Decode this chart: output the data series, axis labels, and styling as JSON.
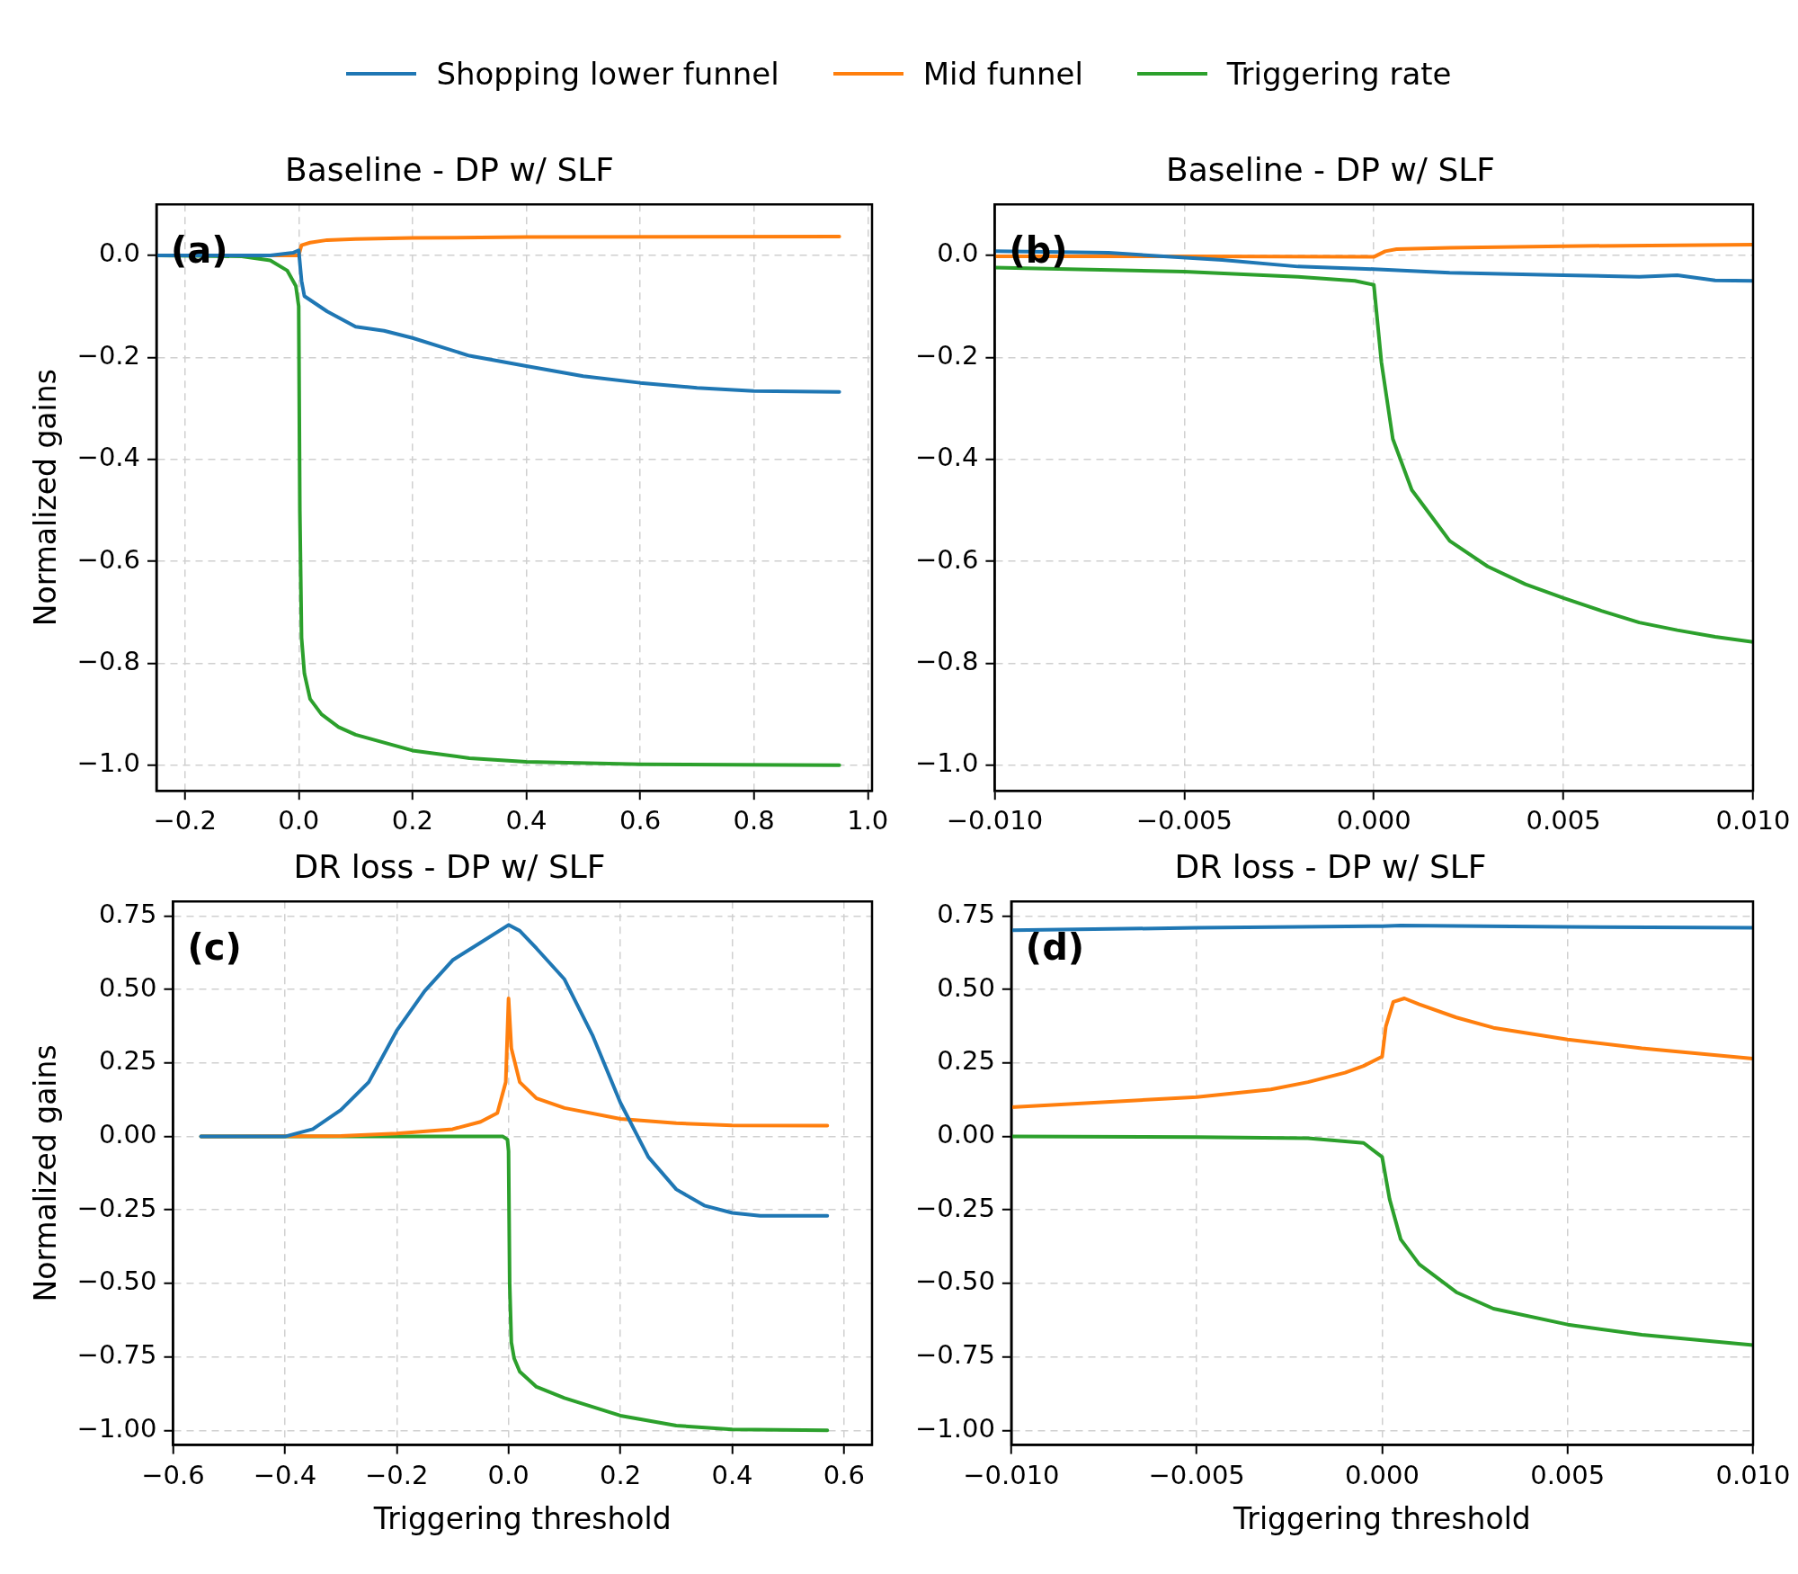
{
  "chart_data": [
    {
      "type": "line",
      "title": "Baseline - DP w/ SLF",
      "ylabel": "Normalized gains",
      "annotations": [
        "(a)"
      ],
      "legend": "top",
      "grid": true,
      "line_style": "solid",
      "marker": "none",
      "xlim": [
        -0.25,
        1.0075
      ],
      "ylim": [
        -1.05,
        0.1
      ],
      "xticks": [
        {
          "value": -0.2,
          "label": "−0.2"
        },
        {
          "value": 0,
          "label": "0.0"
        },
        {
          "value": 0.2,
          "label": "0.2"
        },
        {
          "value": 0.4,
          "label": "0.4"
        },
        {
          "value": 0.6,
          "label": "0.6"
        },
        {
          "value": 0.8,
          "label": "0.8"
        },
        {
          "value": 1,
          "label": "1.0"
        }
      ],
      "yticks": [
        {
          "value": -1,
          "label": "−1.0"
        },
        {
          "value": -0.8,
          "label": "−0.8"
        },
        {
          "value": -0.6,
          "label": "−0.6"
        },
        {
          "value": -0.4,
          "label": "−0.4"
        },
        {
          "value": -0.2,
          "label": "−0.2"
        },
        {
          "value": 0,
          "label": "0.0"
        }
      ],
      "series": [
        {
          "name": "Shopping lower funnel",
          "color": "#1f77b4",
          "x": [
            -0.25,
            -0.05,
            -0.01,
            0,
            0.005,
            0.01,
            0.05,
            0.1,
            0.15,
            0.2,
            0.3,
            0.4,
            0.5,
            0.6,
            0.7,
            0.8,
            0.95
          ],
          "values": [
            0,
            0,
            0.005,
            0.01,
            -0.05,
            -0.08,
            -0.11,
            -0.14,
            -0.148,
            -0.162,
            -0.197,
            -0.217,
            -0.237,
            -0.25,
            -0.26,
            -0.266,
            -0.268
          ]
        },
        {
          "name": "Mid funnel",
          "color": "#ff7f0e",
          "x": [
            -0.25,
            -0.05,
            -0.005,
            0,
            0.005,
            0.02,
            0.05,
            0.1,
            0.2,
            0.4,
            0.95
          ],
          "values": [
            0,
            0,
            0,
            0,
            0.02,
            0.025,
            0.03,
            0.032,
            0.034,
            0.036,
            0.037
          ]
        },
        {
          "name": "Triggering rate",
          "color": "#2ca02c",
          "x": [
            -0.25,
            -0.1,
            -0.05,
            -0.02,
            -0.005,
            0,
            0.002,
            0.005,
            0.01,
            0.02,
            0.04,
            0.07,
            0.1,
            0.2,
            0.3,
            0.4,
            0.6,
            0.95
          ],
          "values": [
            0,
            -0.002,
            -0.01,
            -0.03,
            -0.06,
            -0.1,
            -0.5,
            -0.75,
            -0.82,
            -0.87,
            -0.9,
            -0.925,
            -0.94,
            -0.971,
            -0.986,
            -0.993,
            -0.998,
            -1.0
          ]
        }
      ]
    },
    {
      "type": "line",
      "title": "Baseline - DP w/ SLF",
      "annotations": [
        "(b)"
      ],
      "legend": false,
      "grid": true,
      "line_style": "solid",
      "marker": "none",
      "xlim": [
        -0.01,
        0.01
      ],
      "ylim": [
        -1.05,
        0.1
      ],
      "xticks": [
        {
          "value": -0.01,
          "label": "−0.010"
        },
        {
          "value": -0.005,
          "label": "−0.005"
        },
        {
          "value": 0,
          "label": "0.000"
        },
        {
          "value": 0.005,
          "label": "0.005"
        },
        {
          "value": 0.01,
          "label": "0.010"
        }
      ],
      "yticks": [
        {
          "value": -1,
          "label": "−1.0"
        },
        {
          "value": -0.8,
          "label": "−0.8"
        },
        {
          "value": -0.6,
          "label": "−0.6"
        },
        {
          "value": -0.4,
          "label": "−0.4"
        },
        {
          "value": -0.2,
          "label": "−0.2"
        },
        {
          "value": 0,
          "label": "0.0"
        }
      ],
      "series": [
        {
          "color": "#1f77b4",
          "x": [
            -0.01,
            -0.007,
            -0.004,
            -0.002,
            0,
            0.002,
            0.005,
            0.007,
            0.008,
            0.009,
            0.01
          ],
          "values": [
            0.008,
            0.005,
            -0.009,
            -0.022,
            -0.027,
            -0.034,
            -0.039,
            -0.042,
            -0.039,
            -0.049,
            -0.05
          ]
        },
        {
          "color": "#ff7f0e",
          "x": [
            -0.01,
            -0.005,
            0,
            0.0003,
            0.0006,
            0.002,
            0.005,
            0.01
          ],
          "values": [
            -0.002,
            -0.002,
            -0.003,
            0.008,
            0.012,
            0.015,
            0.018,
            0.021
          ]
        },
        {
          "color": "#2ca02c",
          "x": [
            -0.01,
            -0.005,
            -0.002,
            -0.0005,
            0,
            0.0002,
            0.0005,
            0.001,
            0.0015,
            0.002,
            0.003,
            0.004,
            0.005,
            0.006,
            0.007,
            0.008,
            0.009,
            0.01
          ],
          "values": [
            -0.024,
            -0.032,
            -0.042,
            -0.05,
            -0.058,
            -0.21,
            -0.36,
            -0.46,
            -0.51,
            -0.56,
            -0.61,
            -0.645,
            -0.672,
            -0.697,
            -0.72,
            -0.735,
            -0.748,
            -0.758
          ]
        }
      ]
    },
    {
      "type": "line",
      "title": "DR loss - DP w/ SLF",
      "xlabel": "Triggering threshold",
      "ylabel": "Normalized gains",
      "annotations": [
        "(c)"
      ],
      "legend": false,
      "grid": true,
      "line_style": "solid",
      "marker": "none",
      "xlim": [
        -0.6,
        0.65
      ],
      "ylim": [
        -1.05,
        0.8
      ],
      "xticks": [
        {
          "value": -0.6,
          "label": "−0.6"
        },
        {
          "value": -0.4,
          "label": "−0.4"
        },
        {
          "value": -0.2,
          "label": "−0.2"
        },
        {
          "value": 0,
          "label": "0.0"
        },
        {
          "value": 0.2,
          "label": "0.2"
        },
        {
          "value": 0.4,
          "label": "0.4"
        },
        {
          "value": 0.6,
          "label": "0.6"
        }
      ],
      "yticks": [
        {
          "value": -1,
          "label": "−1.00"
        },
        {
          "value": -0.75,
          "label": "−0.75"
        },
        {
          "value": -0.5,
          "label": "−0.50"
        },
        {
          "value": -0.25,
          "label": "−0.25"
        },
        {
          "value": 0,
          "label": "0.00"
        },
        {
          "value": 0.25,
          "label": "0.25"
        },
        {
          "value": 0.5,
          "label": "0.50"
        },
        {
          "value": 0.75,
          "label": "0.75"
        }
      ],
      "series": [
        {
          "color": "#1f77b4",
          "x": [
            -0.55,
            -0.4,
            -0.35,
            -0.3,
            -0.25,
            -0.2,
            -0.15,
            -0.1,
            -0.05,
            0,
            0.02,
            0.05,
            0.1,
            0.15,
            0.2,
            0.25,
            0.3,
            0.35,
            0.4,
            0.45,
            0.57
          ],
          "values": [
            0,
            0,
            0.025,
            0.09,
            0.185,
            0.36,
            0.495,
            0.6,
            0.66,
            0.72,
            0.7,
            0.64,
            0.535,
            0.345,
            0.115,
            -0.07,
            -0.18,
            -0.235,
            -0.26,
            -0.27,
            -0.27
          ]
        },
        {
          "color": "#ff7f0e",
          "x": [
            -0.55,
            -0.3,
            -0.2,
            -0.1,
            -0.05,
            -0.02,
            -0.005,
            0,
            0.005,
            0.02,
            0.05,
            0.1,
            0.2,
            0.3,
            0.4,
            0.57
          ],
          "values": [
            0,
            0.002,
            0.01,
            0.025,
            0.05,
            0.08,
            0.185,
            0.47,
            0.3,
            0.185,
            0.13,
            0.097,
            0.06,
            0.045,
            0.038,
            0.037
          ]
        },
        {
          "color": "#2ca02c",
          "x": [
            -0.55,
            -0.01,
            -0.002,
            0,
            0.002,
            0.005,
            0.01,
            0.02,
            0.05,
            0.1,
            0.2,
            0.3,
            0.4,
            0.57
          ],
          "values": [
            0,
            0,
            -0.01,
            -0.05,
            -0.5,
            -0.7,
            -0.755,
            -0.8,
            -0.852,
            -0.89,
            -0.95,
            -0.984,
            -0.997,
            -1.0
          ]
        }
      ]
    },
    {
      "type": "line",
      "title": "DR loss - DP w/ SLF",
      "xlabel": "Triggering threshold",
      "annotations": [
        "(d)"
      ],
      "legend": false,
      "grid": true,
      "line_style": "solid",
      "marker": "none",
      "xlim": [
        -0.01,
        0.01
      ],
      "ylim": [
        -1.05,
        0.8
      ],
      "xticks": [
        {
          "value": -0.01,
          "label": "−0.010"
        },
        {
          "value": -0.005,
          "label": "−0.005"
        },
        {
          "value": 0,
          "label": "0.000"
        },
        {
          "value": 0.005,
          "label": "0.005"
        },
        {
          "value": 0.01,
          "label": "0.010"
        }
      ],
      "yticks": [
        {
          "value": -1,
          "label": "−1.00"
        },
        {
          "value": -0.75,
          "label": "−0.75"
        },
        {
          "value": -0.5,
          "label": "−0.50"
        },
        {
          "value": -0.25,
          "label": "−0.25"
        },
        {
          "value": 0,
          "label": "0.00"
        },
        {
          "value": 0.25,
          "label": "0.25"
        },
        {
          "value": 0.5,
          "label": "0.50"
        },
        {
          "value": 0.75,
          "label": "0.75"
        }
      ],
      "series": [
        {
          "color": "#1f77b4",
          "x": [
            -0.01,
            -0.005,
            0,
            0.0005,
            0.005,
            0.01
          ],
          "values": [
            0.702,
            0.71,
            0.716,
            0.718,
            0.713,
            0.71
          ]
        },
        {
          "color": "#ff7f0e",
          "x": [
            -0.01,
            -0.005,
            -0.003,
            -0.002,
            -0.001,
            -0.0005,
            0,
            0.0001,
            0.0003,
            0.0006,
            0.001,
            0.002,
            0.003,
            0.005,
            0.007,
            0.01
          ],
          "values": [
            0.1,
            0.134,
            0.16,
            0.185,
            0.217,
            0.24,
            0.272,
            0.375,
            0.458,
            0.47,
            0.45,
            0.405,
            0.37,
            0.33,
            0.3,
            0.265
          ]
        },
        {
          "color": "#2ca02c",
          "x": [
            -0.01,
            -0.005,
            -0.002,
            -0.0005,
            0,
            0.0002,
            0.0005,
            0.001,
            0.002,
            0.003,
            0.005,
            0.007,
            0.01
          ],
          "values": [
            0,
            -0.002,
            -0.006,
            -0.022,
            -0.07,
            -0.213,
            -0.35,
            -0.435,
            -0.53,
            -0.586,
            -0.64,
            -0.675,
            -0.71
          ]
        }
      ]
    }
  ]
}
